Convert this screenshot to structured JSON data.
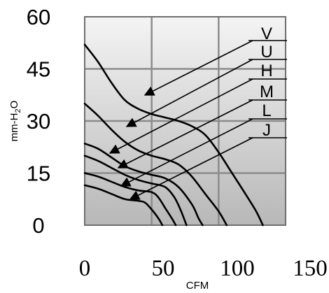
{
  "chart_data": {
    "type": "line",
    "title": "",
    "xlabel": "CFM",
    "ylabel": "mm-H2O",
    "ylabel_main": "mm-H",
    "ylabel_sub": "2",
    "ylabel_tail": "O",
    "xlim": [
      0,
      150
    ],
    "ylim": [
      0,
      60
    ],
    "x_ticks": [
      "0",
      "50",
      "100",
      "150"
    ],
    "y_ticks": [
      "0",
      "15",
      "30",
      "45",
      "60"
    ],
    "grid": true,
    "series": [
      {
        "name": "V",
        "points": [
          [
            0,
            52
          ],
          [
            10,
            47
          ],
          [
            20,
            41
          ],
          [
            30,
            36
          ],
          [
            40,
            33.5
          ],
          [
            50,
            32
          ],
          [
            60,
            31
          ],
          [
            70,
            30
          ],
          [
            80,
            28.5
          ],
          [
            90,
            26
          ],
          [
            100,
            21
          ],
          [
            110,
            15
          ],
          [
            120,
            9
          ],
          [
            128,
            4
          ],
          [
            133,
            0
          ]
        ]
      },
      {
        "name": "U",
        "points": [
          [
            0,
            35
          ],
          [
            10,
            31.5
          ],
          [
            20,
            27.5
          ],
          [
            30,
            24
          ],
          [
            40,
            21.5
          ],
          [
            50,
            20
          ],
          [
            60,
            19
          ],
          [
            70,
            17.5
          ],
          [
            80,
            14
          ],
          [
            90,
            9
          ],
          [
            100,
            4
          ],
          [
            106,
            0
          ]
        ]
      },
      {
        "name": "H",
        "points": [
          [
            0,
            23.5
          ],
          [
            10,
            22
          ],
          [
            20,
            19.5
          ],
          [
            30,
            17
          ],
          [
            40,
            15.5
          ],
          [
            50,
            14.5
          ],
          [
            60,
            13.5
          ],
          [
            70,
            11
          ],
          [
            80,
            6
          ],
          [
            85,
            2
          ],
          [
            88,
            0
          ]
        ]
      },
      {
        "name": "M",
        "points": [
          [
            0,
            20
          ],
          [
            10,
            18.5
          ],
          [
            20,
            16.5
          ],
          [
            30,
            14.5
          ],
          [
            40,
            13
          ],
          [
            50,
            12
          ],
          [
            60,
            11
          ],
          [
            67,
            8
          ],
          [
            72,
            4
          ],
          [
            76,
            0
          ]
        ]
      },
      {
        "name": "L",
        "points": [
          [
            0,
            15
          ],
          [
            10,
            14
          ],
          [
            20,
            12.5
          ],
          [
            30,
            11
          ],
          [
            40,
            10
          ],
          [
            50,
            9.5
          ],
          [
            55,
            8
          ],
          [
            60,
            5
          ],
          [
            65,
            2
          ],
          [
            68,
            0
          ]
        ]
      },
      {
        "name": "J",
        "points": [
          [
            0,
            11.5
          ],
          [
            10,
            10.5
          ],
          [
            20,
            9
          ],
          [
            30,
            7.5
          ],
          [
            40,
            7
          ],
          [
            45,
            6.5
          ],
          [
            50,
            4.5
          ],
          [
            55,
            2
          ],
          [
            58,
            0
          ]
        ]
      }
    ],
    "labels": [
      {
        "series": "V",
        "text": "V"
      },
      {
        "series": "U",
        "text": "U"
      },
      {
        "series": "H",
        "text": "H"
      },
      {
        "series": "M",
        "text": "M"
      },
      {
        "series": "L",
        "text": "L"
      },
      {
        "series": "J",
        "text": "J"
      }
    ],
    "colors": {
      "background_top": "#f4f4f4",
      "background_bottom": "#b8b8b8",
      "line": "#000000",
      "grid": "#8c8c8c"
    }
  }
}
